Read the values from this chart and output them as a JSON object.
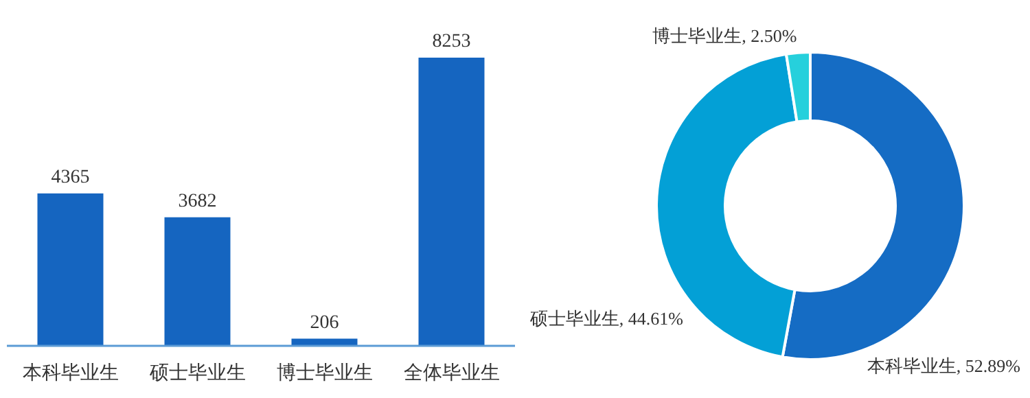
{
  "chart_data": [
    {
      "type": "bar",
      "categories": [
        "本科毕业生",
        "硕士毕业生",
        "博士毕业生",
        "全体毕业生"
      ],
      "values": [
        4365,
        3682,
        206,
        8253
      ],
      "color": "#1565c0",
      "data_labels": true
    },
    {
      "type": "donut",
      "categories": [
        "本科毕业生",
        "硕士毕业生",
        "博士毕业生"
      ],
      "values": [
        52.89,
        44.61,
        2.5
      ],
      "value_labels": [
        "52.89%",
        "44.61%",
        "2.50%"
      ],
      "colors": [
        "#156cc4",
        "#03a0d6",
        "#26d0dc"
      ]
    }
  ]
}
